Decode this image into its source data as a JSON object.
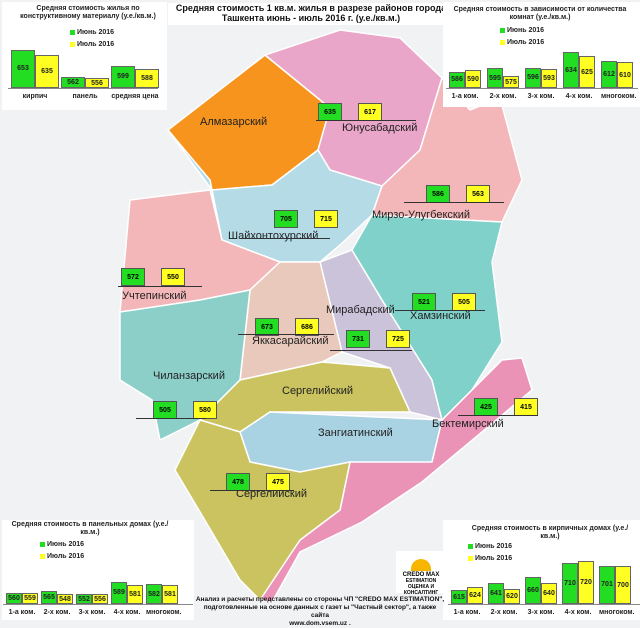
{
  "title": {
    "line1": "Средняя стоимость 1 кв.м. жилья в разрезе районов города",
    "line2": "Ташкента  июнь - июль 2016 г. (у.е./кв.м.)"
  },
  "colors": {
    "june": "#22dd22",
    "july": "#ffff22"
  },
  "legend": {
    "june": "Июнь 2016",
    "july": "Июль 2016"
  },
  "chart_data": [
    {
      "type": "bar",
      "title": "Средняя стоимость жилья по конструктивному материалу (у.е./кв.м.)",
      "categories": [
        "кирпич",
        "панель",
        "средняя цена"
      ],
      "series": [
        {
          "name": "Июнь 2016",
          "values": [
            653,
            562,
            599
          ]
        },
        {
          "name": "Июль 2016",
          "values": [
            635,
            556,
            588
          ]
        }
      ]
    },
    {
      "type": "bar",
      "title": "Средняя стоимость в зависимости от количества комнат (у.е./кв.м.)",
      "categories": [
        "1-а ком.",
        "2-х ком.",
        "3-х ком.",
        "4-х ком.",
        "многоком."
      ],
      "series": [
        {
          "name": "Июнь 2016",
          "values": [
            586,
            595,
            596,
            634,
            612
          ]
        },
        {
          "name": "Июль 2016",
          "values": [
            590,
            575,
            593,
            625,
            610
          ]
        }
      ]
    },
    {
      "type": "bar",
      "title": "Средняя стоимость в панельных домах (у.е./кв.м.)",
      "categories": [
        "1-а ком.",
        "2-х ком.",
        "3-х ком.",
        "4-х ком.",
        "многоком."
      ],
      "series": [
        {
          "name": "Июнь 2016",
          "values": [
            560,
            565,
            552,
            589,
            582
          ]
        },
        {
          "name": "Июль 2016",
          "values": [
            559,
            548,
            556,
            581,
            581
          ]
        }
      ]
    },
    {
      "type": "bar",
      "title": "Средняя стоимость в кирпичных домах (у.е./кв.м.)",
      "categories": [
        "1-а ком.",
        "2-х ком.",
        "3-х ком.",
        "4-х ком.",
        "многоком."
      ],
      "series": [
        {
          "name": "Июнь 2016",
          "values": [
            615,
            641,
            660,
            710,
            701
          ]
        },
        {
          "name": "Июль 2016",
          "values": [
            624,
            620,
            640,
            720,
            700
          ]
        }
      ]
    }
  ],
  "districts": [
    {
      "name": "Алмазарский",
      "june": null,
      "july": null,
      "color": "#f7941d"
    },
    {
      "name": "Юнусабадский",
      "june": 635,
      "july": 617,
      "color": "#e9a6c9"
    },
    {
      "name": "Шайхонтохурский",
      "june": 705,
      "july": 715,
      "color": "#b5dbe6"
    },
    {
      "name": "Мирзо-Улугбекский",
      "june": 586,
      "july": 563,
      "color": "#f3b7b9"
    },
    {
      "name": "Учтепинский",
      "june": 572,
      "july": 550,
      "color": "#f3b7b9"
    },
    {
      "name": "Мирабадский",
      "june": 731,
      "july": 725,
      "color": "#cbc3da"
    },
    {
      "name": "Хамзинский",
      "june": 521,
      "july": 505,
      "color": "#7fd1c9"
    },
    {
      "name": "Яккасарайский",
      "june": 673,
      "july": 686,
      "color": "#e9c9bb"
    },
    {
      "name": "Чиланзарский",
      "june": 505,
      "july": 580,
      "color": "#8ccfc8"
    },
    {
      "name": "Сергелийский",
      "june": null,
      "july": null,
      "color": "#cbc35f"
    },
    {
      "name": "Зангиатинский",
      "june": null,
      "july": null,
      "color": "#a9d2e2"
    },
    {
      "name": "Бектемирский",
      "june": 425,
      "july": 415,
      "color": "#ea93b7"
    },
    {
      "name": "Сергелийский",
      "june": 478,
      "july": 475,
      "color": "#cbc35f"
    }
  ],
  "logo": {
    "name": "CREDO MAX",
    "sub": "ESTIMATION",
    "tagline": "ОЦЕНКА И КОНСАЛТИНГ"
  },
  "footer": {
    "line1": "Анализ и расчеты представлены со стороны ЧП \"CREDO MAX ESTIMATION\",",
    "line2": "подготовленные на основе данных с газет ы \"Частный сектор\", а также сайта",
    "line3": "www.dom.vsem.uz ."
  }
}
